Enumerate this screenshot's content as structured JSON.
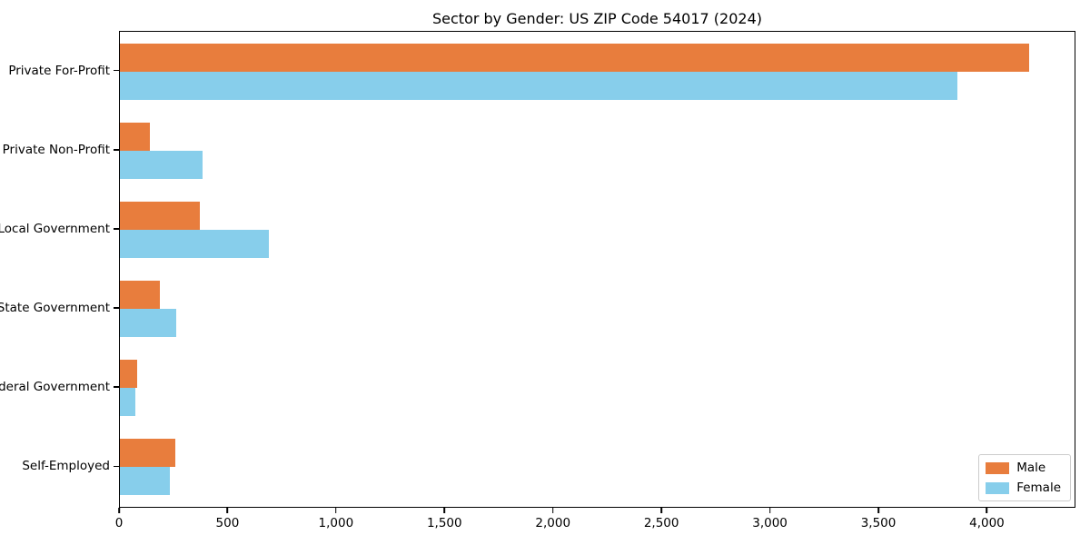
{
  "chart_data": {
    "type": "bar",
    "orientation": "horizontal",
    "title": "Sector by Gender: US ZIP Code 54017 (2024)",
    "categories": [
      "Private For-Profit",
      "Private Non-Profit",
      "Local Government",
      "State Government",
      "Federal Government",
      "Self-Employed"
    ],
    "series": [
      {
        "name": "Male",
        "color": "#E87D3D",
        "values": [
          4190,
          140,
          370,
          185,
          80,
          255
        ]
      },
      {
        "name": "Female",
        "color": "#87CEEB",
        "values": [
          3860,
          380,
          685,
          258,
          72,
          232
        ]
      }
    ],
    "xlabel": "",
    "ylabel": "",
    "xlim": [
      0,
      4400
    ],
    "x_ticks": [
      0,
      500,
      1000,
      1500,
      2000,
      2500,
      3000,
      3500,
      4000
    ],
    "x_tick_labels": [
      "0",
      "500",
      "1,000",
      "1,500",
      "2,000",
      "2,500",
      "3,000",
      "3,500",
      "4,000"
    ],
    "grid": false,
    "legend": {
      "position": "lower right",
      "entries": [
        "Male",
        "Female"
      ]
    },
    "frame": {
      "background": "#ffffff",
      "border_color": "#000000",
      "text_color": "#000000",
      "legend_border": "#cccccc"
    }
  }
}
